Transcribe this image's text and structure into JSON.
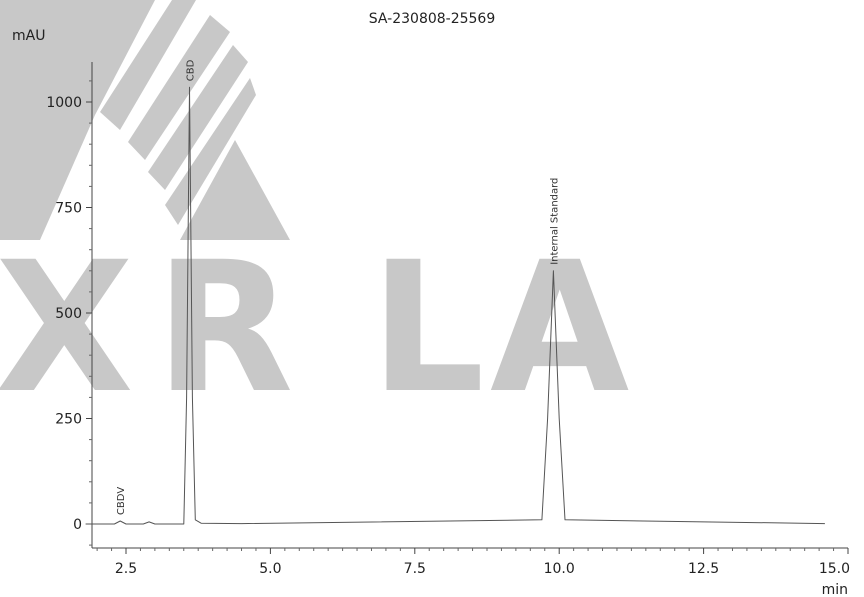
{
  "chart_data": {
    "type": "line",
    "title": "SA-230808-25569",
    "xlabel": "min",
    "ylabel": "mAU",
    "xlim": [
      1.8,
      15.0
    ],
    "ylim": [
      -55,
      1110
    ],
    "x_ticks": [
      2.5,
      5.0,
      7.5,
      10.0,
      12.5,
      15.0
    ],
    "x_tick_labels": [
      "2.5",
      "5.0",
      "7.5",
      "10.0",
      "12.5",
      "15.0"
    ],
    "y_ticks": [
      0,
      250,
      500,
      750,
      1000
    ],
    "y_tick_labels": [
      "0",
      "250",
      "500",
      "750",
      "1000"
    ],
    "grid": false,
    "series": [
      {
        "color": "#555555",
        "x": [
          1.8,
          2.3,
          2.4,
          2.5,
          2.8,
          2.9,
          3.0,
          3.5,
          3.55,
          3.6,
          3.65,
          3.7,
          3.8,
          4.5,
          9.7,
          9.8,
          9.9,
          10.0,
          10.1,
          14.6
        ],
        "y": [
          0,
          0,
          7,
          0,
          0,
          5,
          0,
          0,
          300,
          1035,
          300,
          10,
          2,
          1,
          10,
          250,
          600,
          250,
          10,
          1
        ]
      }
    ],
    "peaks": [
      {
        "label": "CBDV",
        "x": 2.4
      },
      {
        "label": "CBD",
        "x": 3.6
      },
      {
        "label": "Internal Standard",
        "x": 9.9
      }
    ]
  },
  "watermark": {
    "letters": [
      "X",
      "R",
      "L",
      "A"
    ],
    "color": "#c8c8c8"
  }
}
